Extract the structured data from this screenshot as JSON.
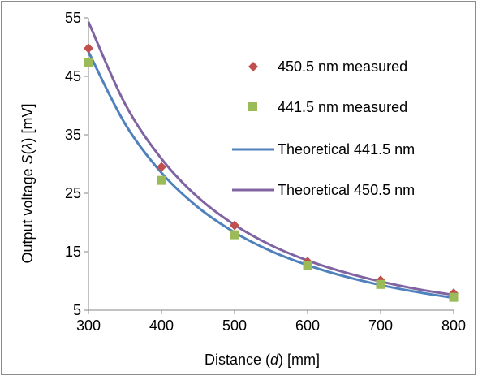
{
  "chart_data": {
    "type": "scatter",
    "xlabel_parts": [
      "Distance (",
      "d",
      ") [mm]"
    ],
    "ylabel_parts": [
      "Output voltage ",
      "S",
      "(",
      "λ",
      ") [mV]"
    ],
    "xlim": [
      300,
      800
    ],
    "ylim": [
      5,
      55
    ],
    "x_ticks": [
      "300",
      "400",
      "500",
      "600",
      "700",
      "800"
    ],
    "y_ticks": [
      "5",
      "15",
      "25",
      "35",
      "45",
      "55"
    ],
    "grid": false,
    "legend_position": "right",
    "series": [
      {
        "name": "450.5 nm measured",
        "kind": "points",
        "marker": "diamond",
        "color": "#c0504d",
        "x": [
          300,
          400,
          500,
          600,
          700,
          800
        ],
        "y": [
          49.8,
          29.5,
          19.5,
          13.3,
          10.1,
          7.9
        ]
      },
      {
        "name": "441.5 nm measured",
        "kind": "points",
        "marker": "square",
        "color": "#9bbb59",
        "x": [
          300,
          400,
          500,
          600,
          700,
          800
        ],
        "y": [
          47.3,
          27.2,
          17.9,
          12.6,
          9.4,
          7.2
        ]
      },
      {
        "name": "Theoretical 441.5 nm",
        "kind": "line",
        "color": "#4f81bd",
        "x": [
          300,
          350,
          400,
          450,
          500,
          550,
          600,
          650,
          700,
          750,
          800
        ],
        "y": [
          49.2,
          36.9,
          28.5,
          22.6,
          18.3,
          15.1,
          12.7,
          10.8,
          9.3,
          8.1,
          7.1
        ]
      },
      {
        "name": "Theoretical 450.5 nm",
        "kind": "line",
        "color": "#8064a2",
        "x": [
          300,
          350,
          400,
          450,
          500,
          550,
          600,
          650,
          700,
          750,
          800
        ],
        "y": [
          54.3,
          40.3,
          30.9,
          24.3,
          19.6,
          16.1,
          13.5,
          11.5,
          9.9,
          8.6,
          7.6
        ]
      }
    ]
  }
}
